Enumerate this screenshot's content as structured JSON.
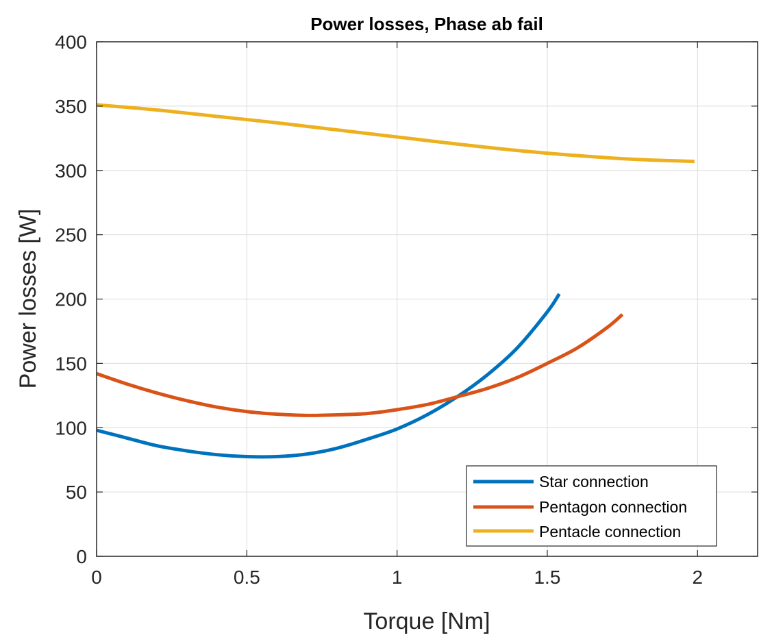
{
  "chart_data": {
    "type": "line",
    "title": "Power losses, Phase ab fail",
    "xlabel": "Torque [Nm]",
    "ylabel": "Power losses [W]",
    "xlim": [
      0,
      2.2
    ],
    "ylim": [
      0,
      400
    ],
    "xticks": [
      0,
      0.5,
      1,
      1.5,
      2
    ],
    "xtick_labels": [
      "0",
      "0.5",
      "1",
      "1.5",
      "2"
    ],
    "yticks": [
      0,
      50,
      100,
      150,
      200,
      250,
      300,
      350,
      400
    ],
    "ytick_labels": [
      "0",
      "50",
      "100",
      "150",
      "200",
      "250",
      "300",
      "350",
      "400"
    ],
    "grid": true,
    "legend_position": "bottom-right",
    "series": [
      {
        "name": "Star connection",
        "color": "#0072BD",
        "x": [
          0,
          0.1,
          0.2,
          0.3,
          0.4,
          0.5,
          0.6,
          0.7,
          0.8,
          0.9,
          1.0,
          1.1,
          1.2,
          1.3,
          1.4,
          1.5,
          1.54
        ],
        "y": [
          98,
          92,
          86,
          82,
          79,
          77.5,
          77.5,
          79.5,
          84,
          91,
          99,
          110,
          124,
          141,
          162,
          190,
          204
        ]
      },
      {
        "name": "Pentagon connection",
        "color": "#D95319",
        "x": [
          0,
          0.1,
          0.2,
          0.3,
          0.4,
          0.5,
          0.6,
          0.7,
          0.8,
          0.9,
          1.0,
          1.1,
          1.2,
          1.3,
          1.4,
          1.5,
          1.6,
          1.7,
          1.75
        ],
        "y": [
          142,
          134,
          127,
          121,
          116,
          112.5,
          110.5,
          109.5,
          110,
          111,
          114,
          118,
          124,
          130.5,
          139,
          150,
          162,
          178,
          188
        ]
      },
      {
        "name": "Pentacle connection",
        "color": "#EDB120",
        "x": [
          0,
          0.2,
          0.4,
          0.6,
          0.8,
          1.0,
          1.2,
          1.4,
          1.6,
          1.8,
          1.99
        ],
        "y": [
          351,
          347,
          342,
          337,
          331.5,
          326,
          320.5,
          315.5,
          311.5,
          308.5,
          307
        ]
      }
    ]
  }
}
